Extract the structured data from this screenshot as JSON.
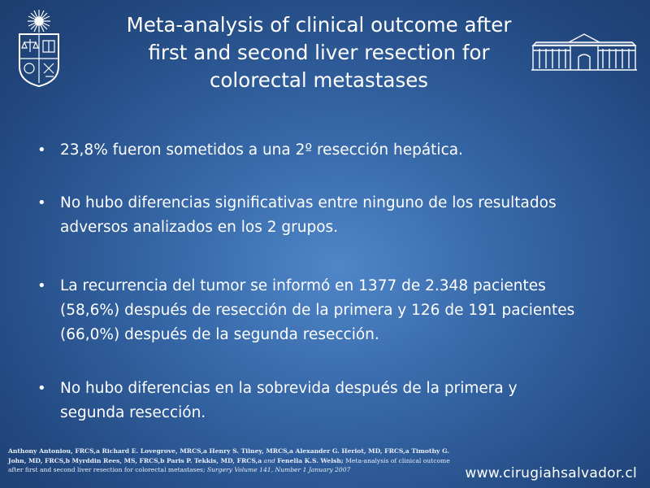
{
  "title": {
    "line1": "Meta-analysis of clinical outcome after",
    "line2": "first and second liver resection for",
    "line3": "colorectal metastases"
  },
  "bullets": [
    {
      "lines": [
        "23,8% fueron sometidos a una 2º resección hepática."
      ]
    },
    {
      "lines": [
        "No hubo diferencias significativas entre ninguno de los resultados",
        "adversos analizados en los 2 grupos."
      ]
    },
    {
      "lines": [
        "La recurrencia del tumor se informó en 1377 de 2.348 pacientes",
        "(58,6%) después de resección de la primera y 126 de 191 pacientes",
        "(66,0%) después de la segunda resección."
      ]
    },
    {
      "lines": [
        "No hubo diferencias en la sobrevida después de la primera y",
        "segunda resección."
      ]
    }
  ],
  "citation": {
    "line1": "Anthony Antoniou, FRCS,a Richard E. Lovegrove, MRCS,a Henry S. Tilney, MRCS,a Alexander G. Heriot, MD, FRCS,a Timothy G.",
    "line2_bold": "John, MD, FRCS,b Myrddin Rees, MS, FRCS,b Paris P. Tekkis, MD, FRCS,a",
    "line2_and": "and",
    "line2_bold2": "Fenella K.S. Welsh;",
    "line2_tail": "Meta-analysis of clinical outcome",
    "line3_plain": "after first and second liver resection for colorectal metastases;",
    "line3_italic": "Surgery Volume 141, Number 1 January 2007"
  },
  "website": "www.cirugiahsalvador.cl",
  "icons": {
    "crest": "university-crest-icon",
    "building": "hospital-building-icon"
  },
  "colors": {
    "background_center": "#4f86c8",
    "background_edge": "#1d3d6e",
    "text": "#ffffff"
  }
}
